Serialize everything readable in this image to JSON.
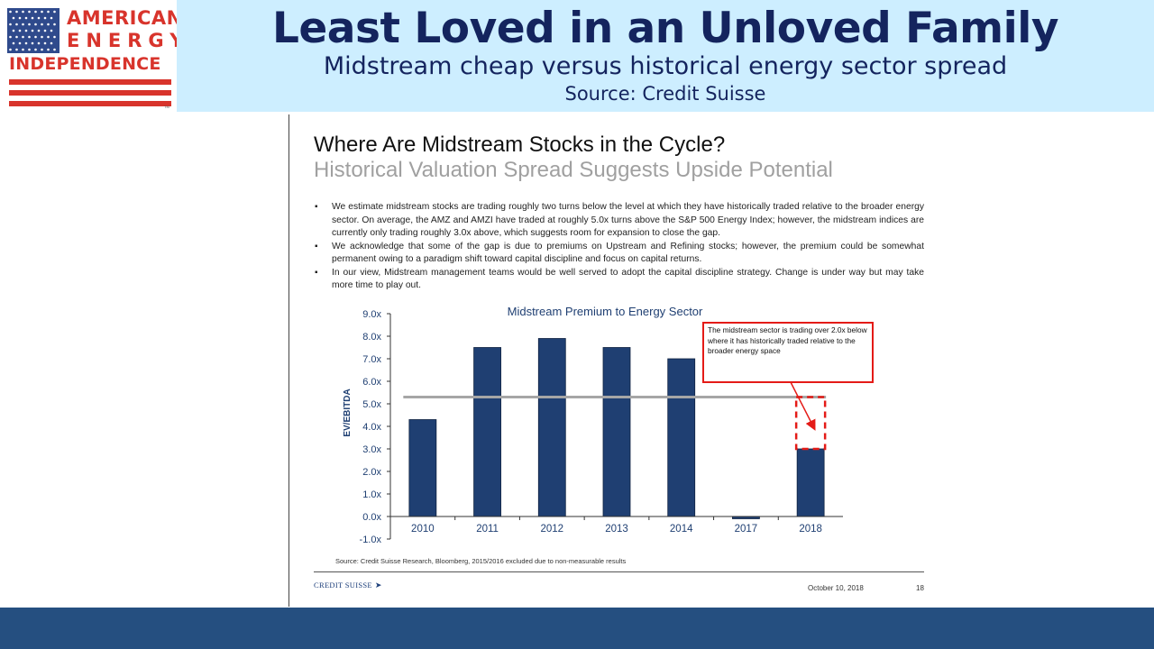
{
  "header": {
    "title": "Least Loved in an Unloved Family",
    "subtitle": "Midstream cheap versus historical energy sector spread",
    "source": "Source: Credit Suisse"
  },
  "logo": {
    "line1": "AMERICAN",
    "line2": "ENERGY",
    "line3": "INDEPENDENCE",
    "tm": "TM"
  },
  "slide": {
    "title": "Where Are Midstream Stocks in the Cycle?",
    "subtitle": "Historical Valuation Spread Suggests Upside Potential",
    "bullets": [
      "We estimate midstream stocks are trading roughly two turns below the level at which they have historically traded relative to the broader energy sector. On average, the AMZ and AMZI have traded at roughly 5.0x turns above the S&P 500 Energy Index; however, the midstream indices are currently only trading roughly 3.0x above, which suggests room for expansion to close the gap.",
      "We acknowledge that some of the gap is due to premiums on Upstream and Refining stocks; however, the premium could be somewhat permanent owing to a paradigm shift toward capital discipline and focus on capital returns.",
      "In our view, Midstream management teams would be well served to adopt the capital discipline strategy. Change is under way but may take more time to play out."
    ],
    "footnote": "Source: Credit Suisse Research, Bloomberg, 2015/2016 excluded due to non-measurable results",
    "brand": "CREDIT SUISSE",
    "date": "October 10, 2018",
    "page": "18"
  },
  "chart_data": {
    "type": "bar",
    "title": "Midstream Premium to Energy Sector",
    "ylabel": "EV/EBITDA",
    "xlabel": "",
    "categories": [
      "2010",
      "2011",
      "2012",
      "2013",
      "2014",
      "2017",
      "2018"
    ],
    "values": [
      4.3,
      7.5,
      7.9,
      7.5,
      7.0,
      -0.1,
      3.0
    ],
    "average_line": 5.3,
    "ylim": [
      -1.0,
      9.0
    ],
    "yticks": [
      "-1.0x",
      "0.0x",
      "1.0x",
      "2.0x",
      "3.0x",
      "4.0x",
      "5.0x",
      "6.0x",
      "7.0x",
      "8.0x",
      "9.0x"
    ],
    "annotation": "The midstream sector is trading over 2.0x below where it has historically traded relative to the broader energy space",
    "legend": "none",
    "grid": false,
    "colors": {
      "bar": "#1f3f72",
      "average": "#a6a6a6",
      "callout": "#e41b17",
      "title": "#1f3f72"
    }
  }
}
